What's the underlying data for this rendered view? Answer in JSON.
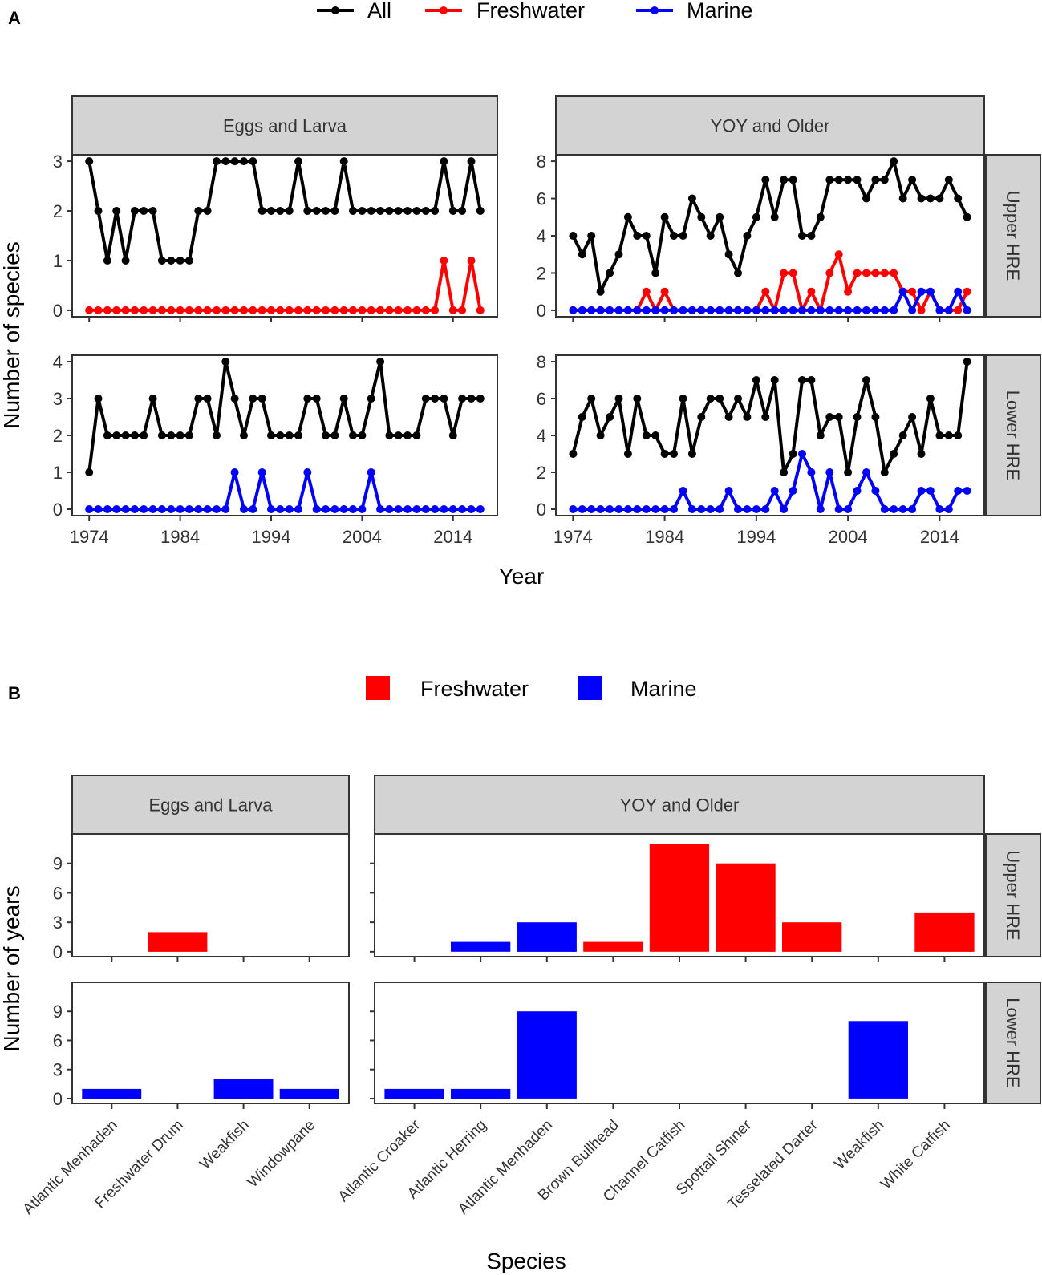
{
  "colors": {
    "all": "#000000",
    "freshwater": "#ff0000",
    "marine": "#0000ff",
    "strip": "#d3d3d3",
    "axis": "#333333"
  },
  "chart_data": [
    {
      "panel_label": "A",
      "type": "line",
      "title": "",
      "xlabel": "Year",
      "ylabel": "Number of species",
      "legend": [
        {
          "key": "all",
          "label": "All"
        },
        {
          "key": "freshwater",
          "label": "Freshwater"
        },
        {
          "key": "marine",
          "label": "Marine"
        }
      ],
      "legend_position": "top",
      "x_range": [
        1974,
        2017
      ],
      "x_ticks": [
        1974,
        1984,
        1994,
        2004,
        2014
      ],
      "col_facets": [
        "Eggs and Larva",
        "YOY and Older"
      ],
      "row_facets": [
        "Upper HRE",
        "Lower HRE"
      ],
      "facets": [
        {
          "row": 0,
          "col": 0,
          "ylim": [
            0,
            3
          ],
          "y_ticks": [
            0,
            1,
            2,
            3
          ],
          "series": [
            {
              "key": "all",
              "values": [
                3,
                2,
                1,
                2,
                1,
                2,
                2,
                2,
                1,
                1,
                1,
                1,
                2,
                2,
                3,
                3,
                3,
                3,
                3,
                2,
                2,
                2,
                2,
                3,
                2,
                2,
                2,
                2,
                3,
                2,
                2,
                2,
                2,
                2,
                2,
                2,
                2,
                2,
                2,
                3,
                2,
                2,
                3,
                2
              ]
            },
            {
              "key": "freshwater",
              "values": [
                0,
                0,
                0,
                0,
                0,
                0,
                0,
                0,
                0,
                0,
                0,
                0,
                0,
                0,
                0,
                0,
                0,
                0,
                0,
                0,
                0,
                0,
                0,
                0,
                0,
                0,
                0,
                0,
                0,
                0,
                0,
                0,
                0,
                0,
                0,
                0,
                0,
                0,
                0,
                1,
                0,
                0,
                1,
                0
              ]
            }
          ]
        },
        {
          "row": 0,
          "col": 1,
          "ylim": [
            0,
            8
          ],
          "y_ticks": [
            0,
            2,
            4,
            6,
            8
          ],
          "series": [
            {
              "key": "all",
              "values": [
                4,
                3,
                4,
                1,
                2,
                3,
                5,
                4,
                4,
                2,
                5,
                4,
                4,
                6,
                5,
                4,
                5,
                3,
                2,
                4,
                5,
                7,
                5,
                7,
                7,
                4,
                4,
                5,
                7,
                7,
                7,
                7,
                6,
                7,
                7,
                8,
                6,
                7,
                6,
                6,
                6,
                7,
                6,
                5
              ]
            },
            {
              "key": "freshwater",
              "values": [
                0,
                0,
                0,
                0,
                0,
                0,
                0,
                0,
                1,
                0,
                1,
                0,
                0,
                0,
                0,
                0,
                0,
                0,
                0,
                0,
                0,
                1,
                0,
                2,
                2,
                0,
                1,
                0,
                2,
                3,
                1,
                2,
                2,
                2,
                2,
                2,
                1,
                1,
                0,
                1,
                0,
                0,
                0,
                1
              ]
            },
            {
              "key": "marine",
              "values": [
                0,
                0,
                0,
                0,
                0,
                0,
                0,
                0,
                0,
                0,
                0,
                0,
                0,
                0,
                0,
                0,
                0,
                0,
                0,
                0,
                0,
                0,
                0,
                0,
                0,
                0,
                0,
                0,
                0,
                0,
                0,
                0,
                0,
                0,
                0,
                0,
                1,
                0,
                1,
                1,
                0,
                0,
                1,
                0
              ]
            }
          ]
        },
        {
          "row": 1,
          "col": 0,
          "ylim": [
            0,
            4
          ],
          "y_ticks": [
            0,
            1,
            2,
            3,
            4
          ],
          "series": [
            {
              "key": "all",
              "values": [
                1,
                3,
                2,
                2,
                2,
                2,
                2,
                3,
                2,
                2,
                2,
                2,
                3,
                3,
                2,
                4,
                3,
                2,
                3,
                3,
                2,
                2,
                2,
                2,
                3,
                3,
                2,
                2,
                3,
                2,
                2,
                3,
                4,
                2,
                2,
                2,
                2,
                3,
                3,
                3,
                2,
                3,
                3,
                3
              ]
            },
            {
              "key": "marine",
              "values": [
                0,
                0,
                0,
                0,
                0,
                0,
                0,
                0,
                0,
                0,
                0,
                0,
                0,
                0,
                0,
                0,
                1,
                0,
                0,
                1,
                0,
                0,
                0,
                0,
                1,
                0,
                0,
                0,
                0,
                0,
                0,
                1,
                0,
                0,
                0,
                0,
                0,
                0,
                0,
                0,
                0,
                0,
                0,
                0
              ]
            }
          ]
        },
        {
          "row": 1,
          "col": 1,
          "ylim": [
            0,
            8
          ],
          "y_ticks": [
            0,
            2,
            4,
            6,
            8
          ],
          "series": [
            {
              "key": "all",
              "values": [
                3,
                5,
                6,
                4,
                5,
                6,
                3,
                6,
                4,
                4,
                3,
                3,
                6,
                3,
                5,
                6,
                6,
                5,
                6,
                5,
                7,
                5,
                7,
                2,
                3,
                7,
                7,
                4,
                5,
                5,
                2,
                5,
                7,
                5,
                2,
                3,
                4,
                5,
                3,
                6,
                4,
                4,
                4,
                8
              ]
            },
            {
              "key": "marine",
              "values": [
                0,
                0,
                0,
                0,
                0,
                0,
                0,
                0,
                0,
                0,
                0,
                0,
                1,
                0,
                0,
                0,
                0,
                1,
                0,
                0,
                0,
                0,
                1,
                0,
                1,
                3,
                2,
                0,
                2,
                0,
                0,
                1,
                2,
                1,
                0,
                0,
                0,
                0,
                1,
                1,
                0,
                0,
                1,
                1
              ]
            }
          ]
        }
      ]
    },
    {
      "panel_label": "B",
      "type": "bar",
      "title": "",
      "xlabel": "Species",
      "ylabel": "Number of years",
      "legend": [
        {
          "key": "freshwater",
          "label": "Freshwater"
        },
        {
          "key": "marine",
          "label": "Marine"
        }
      ],
      "legend_position": "top",
      "ylim": [
        0,
        11.5
      ],
      "y_ticks": [
        0,
        3,
        6,
        9
      ],
      "col_facets": [
        "Eggs and Larva",
        "YOY and Older"
      ],
      "row_facets": [
        "Upper HRE",
        "Lower HRE"
      ],
      "facets": [
        {
          "col": 0,
          "categories": [
            "Atlantic Menhaden",
            "Freshwater Drum",
            "Weakfish",
            "Windowpane"
          ],
          "rows": [
            [
              {
                "cat": 1,
                "value": 2,
                "group": "freshwater"
              }
            ],
            [
              {
                "cat": 0,
                "value": 1,
                "group": "marine"
              },
              {
                "cat": 2,
                "value": 2,
                "group": "marine"
              },
              {
                "cat": 3,
                "value": 1,
                "group": "marine"
              }
            ]
          ]
        },
        {
          "col": 1,
          "categories": [
            "Atlantic Croaker",
            "Atlantic Herring",
            "Atlantic Menhaden",
            "Brown Bullhead",
            "Channel Catfish",
            "Spottail Shiner",
            "Tesselated Darter",
            "Weakfish",
            "White Catfish"
          ],
          "rows": [
            [
              {
                "cat": 1,
                "value": 1,
                "group": "marine"
              },
              {
                "cat": 2,
                "value": 3,
                "group": "marine"
              },
              {
                "cat": 3,
                "value": 1,
                "group": "freshwater"
              },
              {
                "cat": 4,
                "value": 11,
                "group": "freshwater"
              },
              {
                "cat": 5,
                "value": 9,
                "group": "freshwater"
              },
              {
                "cat": 6,
                "value": 3,
                "group": "freshwater"
              },
              {
                "cat": 8,
                "value": 4,
                "group": "freshwater"
              }
            ],
            [
              {
                "cat": 0,
                "value": 1,
                "group": "marine"
              },
              {
                "cat": 1,
                "value": 1,
                "group": "marine"
              },
              {
                "cat": 2,
                "value": 9,
                "group": "marine"
              },
              {
                "cat": 7,
                "value": 8,
                "group": "marine"
              }
            ]
          ]
        }
      ]
    }
  ]
}
